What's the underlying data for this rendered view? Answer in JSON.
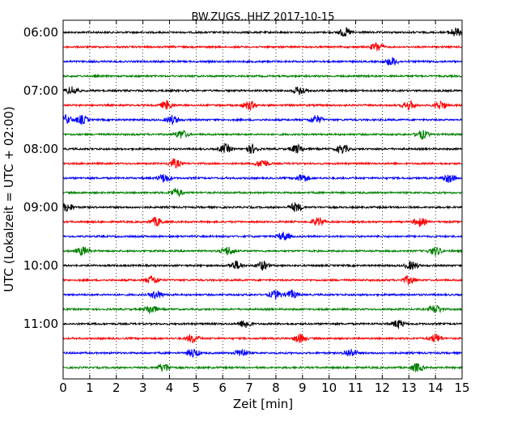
{
  "chart_data": {
    "type": "line",
    "title": "BW.ZUGS..HHZ 2017-10-15",
    "xlabel": "Zeit  [min]",
    "ylabel": "UTC (Lokalzeit = UTC + 02:00)",
    "xlim": [
      0,
      15
    ],
    "x_ticks": [
      0,
      1,
      2,
      3,
      4,
      5,
      6,
      7,
      8,
      9,
      10,
      11,
      12,
      13,
      14,
      15
    ],
    "x_tick_labels": [
      "0",
      "1",
      "2",
      "3",
      "4",
      "5",
      "6",
      "7",
      "8",
      "9",
      "10",
      "11",
      "12",
      "13",
      "14",
      "15"
    ],
    "y_tick_labels": [
      "06:00",
      "07:00",
      "08:00",
      "09:00",
      "10:00",
      "11:00"
    ],
    "grid": "vertical dotted",
    "trace_colors": [
      "#000000",
      "#ff0000",
      "#0000ff",
      "#008000"
    ],
    "traces": [
      {
        "start": "06:00",
        "events": [
          10.6,
          14.75
        ]
      },
      {
        "start": "06:15",
        "events": [
          11.8
        ]
      },
      {
        "start": "06:30",
        "events": [
          12.35
        ]
      },
      {
        "start": "06:45",
        "events": []
      },
      {
        "start": "07:00",
        "events": [
          0.35,
          8.9
        ]
      },
      {
        "start": "07:15",
        "events": [
          3.9,
          7.0,
          13.0,
          14.2
        ]
      },
      {
        "start": "07:30",
        "events": [
          0.1,
          0.7,
          4.1,
          9.5
        ]
      },
      {
        "start": "07:45",
        "events": [
          4.45,
          13.5
        ]
      },
      {
        "start": "08:00",
        "events": [
          6.1,
          7.1,
          8.8,
          10.5
        ]
      },
      {
        "start": "08:15",
        "events": [
          4.2,
          7.5
        ]
      },
      {
        "start": "08:30",
        "events": [
          3.8,
          9.0,
          14.5
        ]
      },
      {
        "start": "08:45",
        "events": [
          4.25
        ]
      },
      {
        "start": "09:00",
        "events": [
          0.15,
          8.75
        ]
      },
      {
        "start": "09:15",
        "events": [
          3.5,
          9.6,
          13.4
        ]
      },
      {
        "start": "09:30",
        "events": [
          8.3
        ]
      },
      {
        "start": "09:45",
        "events": [
          0.75,
          6.2,
          14.0
        ]
      },
      {
        "start": "10:00",
        "events": [
          6.5,
          7.5,
          13.1
        ]
      },
      {
        "start": "10:15",
        "events": [
          3.35,
          13.0
        ]
      },
      {
        "start": "10:30",
        "events": [
          3.5,
          8.0,
          8.6
        ]
      },
      {
        "start": "10:45",
        "events": [
          3.3,
          14.0
        ]
      },
      {
        "start": "11:00",
        "events": [
          6.85,
          12.6
        ]
      },
      {
        "start": "11:15",
        "events": [
          4.85,
          8.9,
          14.0
        ]
      },
      {
        "start": "11:30",
        "events": [
          4.9,
          6.7,
          10.8
        ]
      },
      {
        "start": "11:45",
        "events": [
          3.8,
          13.3
        ]
      }
    ]
  }
}
